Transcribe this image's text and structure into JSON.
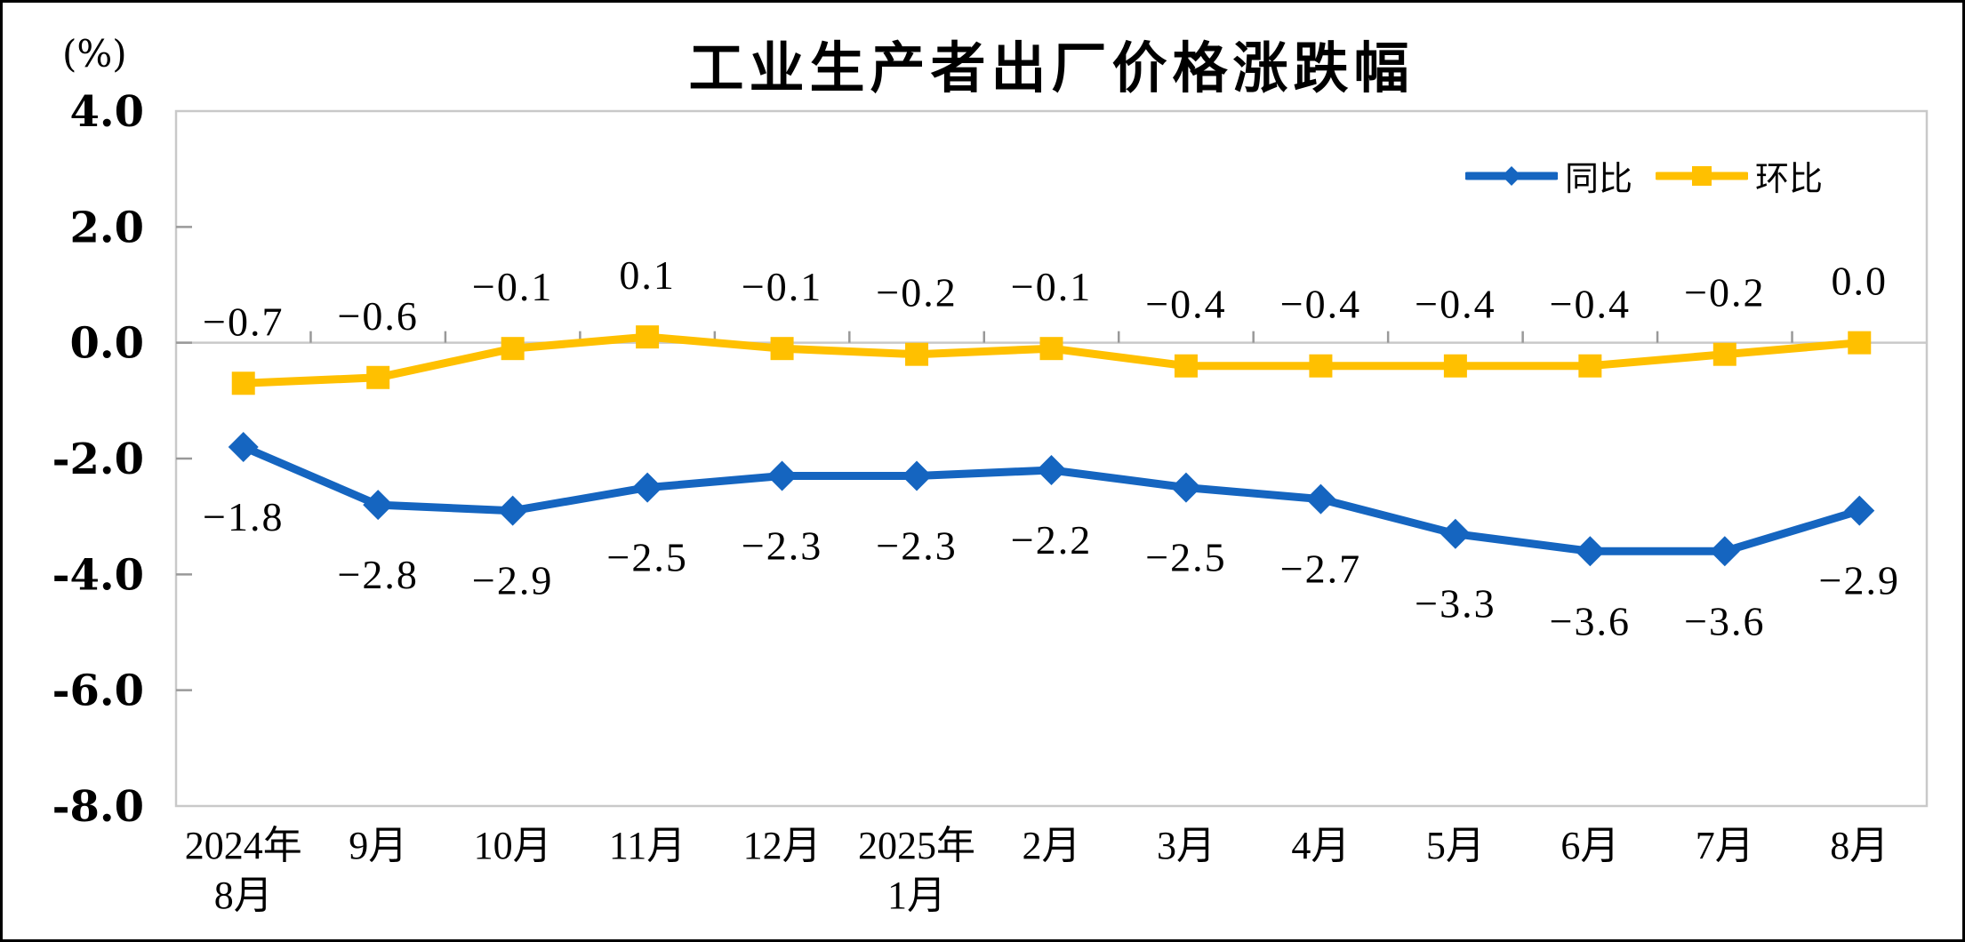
{
  "title": "工业生产者出厂价格涨跌幅",
  "unit_label": "(%)",
  "chart_data": {
    "type": "line",
    "title": "工业生产者出厂价格涨跌幅",
    "unit": "%",
    "categories": [
      [
        "2024年",
        "8月"
      ],
      [
        "9月"
      ],
      [
        "10月"
      ],
      [
        "11月"
      ],
      [
        "12月"
      ],
      [
        "2025年",
        "1月"
      ],
      [
        "2月"
      ],
      [
        "3月"
      ],
      [
        "4月"
      ],
      [
        "5月"
      ],
      [
        "6月"
      ],
      [
        "7月"
      ],
      [
        "8月"
      ]
    ],
    "series": [
      {
        "id": "yoy",
        "name": "同比",
        "color": "#1565C0",
        "marker": "diamond",
        "label_position": "below",
        "values": [
          -1.8,
          -2.8,
          -2.9,
          -2.5,
          -2.3,
          -2.3,
          -2.2,
          -2.5,
          -2.7,
          -3.3,
          -3.6,
          -3.6,
          -2.9
        ]
      },
      {
        "id": "mom",
        "name": "环比",
        "color": "#FFC000",
        "marker": "square",
        "label_position": "above",
        "values": [
          -0.7,
          -0.6,
          -0.1,
          0.1,
          -0.1,
          -0.2,
          -0.1,
          -0.4,
          -0.4,
          -0.4,
          -0.4,
          -0.2,
          0.0
        ]
      }
    ],
    "ylim": [
      -8,
      4
    ],
    "ytick_step": 2,
    "ytick_labels": [
      "4.0",
      "2.0",
      "0.0",
      "-2.0",
      "-4.0",
      "-6.0",
      "-8.0"
    ],
    "grid": false,
    "legend_position": "top-right-inside",
    "axis_color": "#C9C9C9",
    "tick_color": "#999999",
    "text_color": "#000000"
  }
}
